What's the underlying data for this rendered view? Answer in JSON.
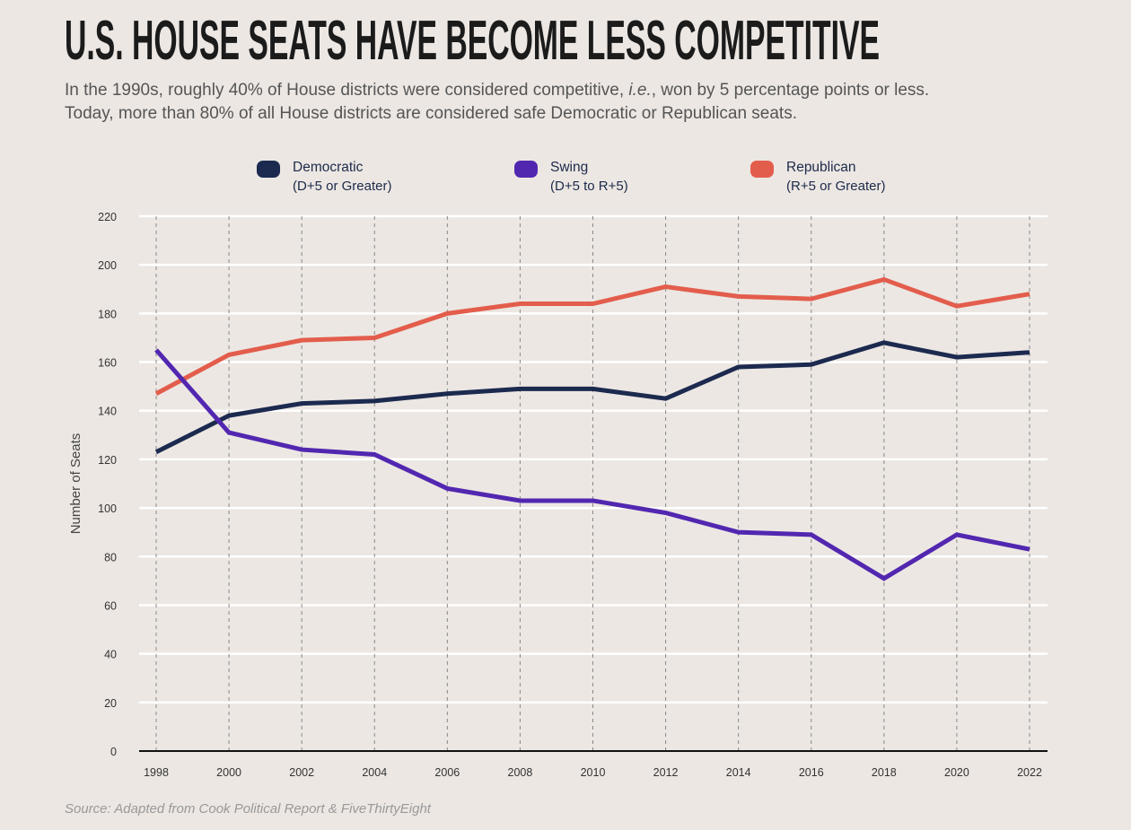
{
  "title": "U.S. HOUSE SEATS HAVE BECOME LESS COMPETITIVE",
  "subtitle": {
    "pre": "In the 1990s, roughly 40% of House districts were considered competitive, ",
    "em": "i.e.",
    "post": ", won by 5 percentage points or less.",
    "line2": "Today, more than 80% of all House districts are considered safe Democratic or Republican seats."
  },
  "source": "Source: Adapted from Cook Political Report & FiveThirtyEight",
  "chart_data": {
    "type": "line",
    "ylabel": "Number of Seats",
    "xlabel": "",
    "ylim": [
      0,
      220
    ],
    "yticks": [
      0,
      20,
      40,
      60,
      80,
      100,
      120,
      140,
      160,
      180,
      200,
      220
    ],
    "x": [
      1998,
      2000,
      2002,
      2004,
      2006,
      2008,
      2010,
      2012,
      2014,
      2016,
      2018,
      2020,
      2022
    ],
    "grid": true,
    "legend_position": "top",
    "series": [
      {
        "name": "Democratic",
        "detail": "(D+5 or Greater)",
        "color": "#1c2a4f",
        "values": [
          123,
          138,
          143,
          144,
          147,
          149,
          149,
          145,
          158,
          159,
          168,
          162,
          164
        ]
      },
      {
        "name": "Swing",
        "detail": "(D+5 to R+5)",
        "color": "#5227b0",
        "values": [
          165,
          131,
          124,
          122,
          108,
          103,
          103,
          98,
          90,
          89,
          71,
          89,
          83
        ]
      },
      {
        "name": "Republican",
        "detail": "(R+5 or Greater)",
        "color": "#e35d4c",
        "values": [
          147,
          163,
          169,
          170,
          180,
          184,
          184,
          191,
          187,
          186,
          194,
          183,
          188
        ]
      }
    ]
  }
}
